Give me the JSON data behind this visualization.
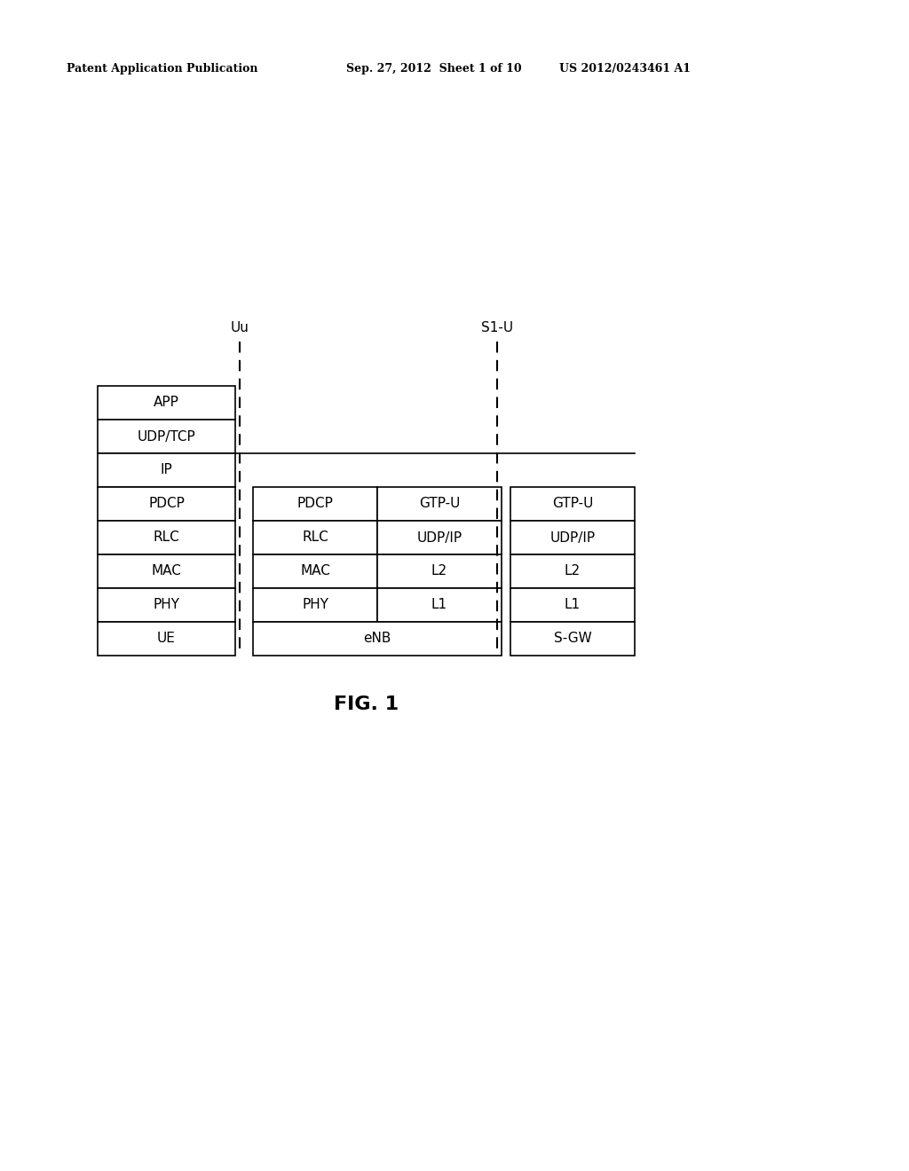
{
  "header_left": "Patent Application Publication",
  "header_mid": "Sep. 27, 2012  Sheet 1 of 10",
  "header_right": "US 2012/0243461 A1",
  "fig_label": "FIG. 1",
  "uu_label": "Uu",
  "s1u_label": "S1-U",
  "ue_layers_top_to_bottom": [
    "APP",
    "UDP/TCP",
    "IP",
    "PDCP",
    "RLC",
    "MAC",
    "PHY",
    "UE"
  ],
  "enb_left_layers_top_to_bottom": [
    "PDCP",
    "RLC",
    "MAC",
    "PHY"
  ],
  "enb_right_layers_top_to_bottom": [
    "GTP-U",
    "UDP/IP",
    "L2",
    "L1"
  ],
  "enb_bottom": "eNB",
  "sgw_layers_top_to_bottom": [
    "GTP-U",
    "UDP/IP",
    "L2",
    "L1"
  ],
  "sgw_bottom": "S-GW",
  "bg_color": "#ffffff"
}
